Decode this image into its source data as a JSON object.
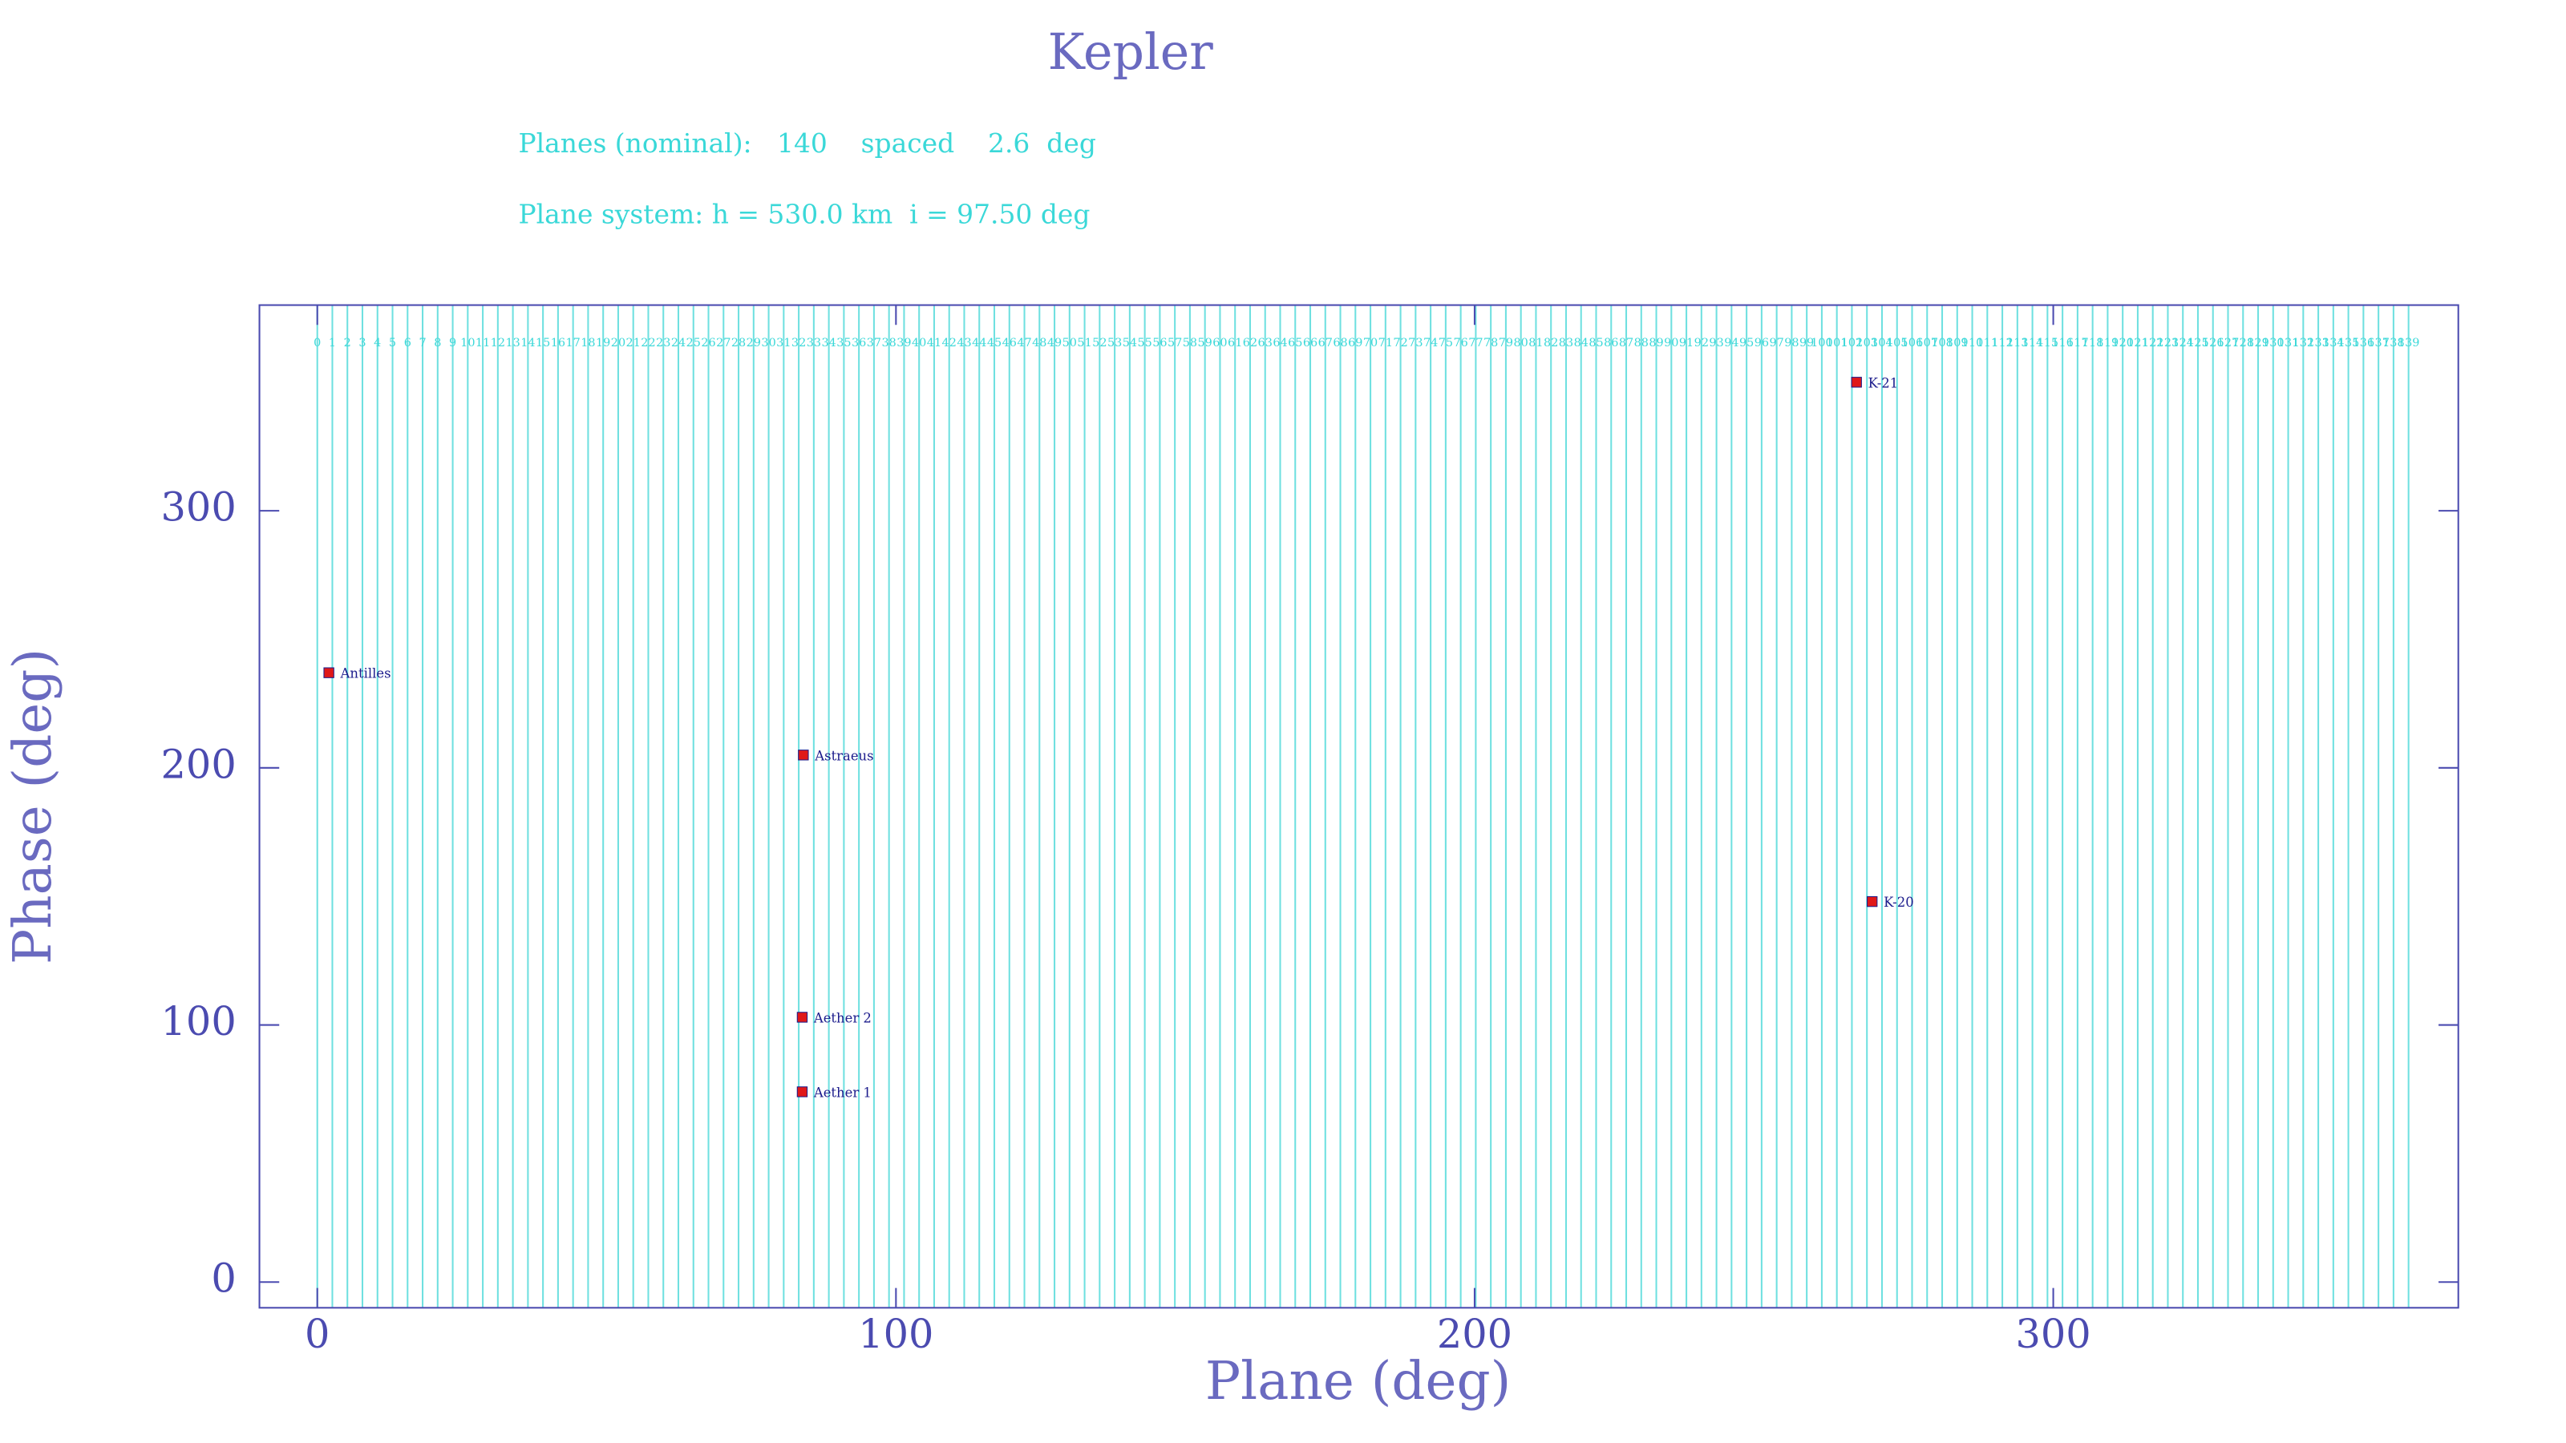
{
  "chart_data": {
    "type": "scatter",
    "title": "Kepler",
    "subtitle": "Planes (nominal):   140    spaced    2.6  deg",
    "subtitle2": "Plane system: h = 530.0 km  i = 97.50 deg",
    "x_label": "Plane (deg)",
    "y_label": "Phase (deg)",
    "xlim": [
      -10,
      370
    ],
    "ylim": [
      -10,
      380
    ],
    "xticks": [
      0,
      100,
      200,
      300
    ],
    "yticks": [
      0,
      100,
      200,
      300
    ],
    "axis_color": "#4b4bb0",
    "plane_color": "#6fe0e0",
    "point_color": "#e01818",
    "label_color": "#1c1c8c",
    "planes": {
      "x": [
        0,
        2.6,
        5.2,
        7.8,
        10.4,
        13,
        15.6,
        18.2,
        20.8,
        23.4,
        26,
        28.6,
        31.2,
        33.8,
        36.4,
        39,
        41.6,
        44.2,
        46.8,
        49.4,
        52,
        54.6,
        57.2,
        59.8,
        62.4,
        65,
        67.6,
        70.2,
        72.8,
        75.4,
        78,
        80.6,
        83.2,
        85.8,
        88.4,
        91,
        93.6,
        96.2,
        98.8,
        101.4,
        104,
        106.6,
        109.2,
        111.8,
        114.4,
        117,
        119.6,
        122.2,
        124.8,
        127.4,
        130,
        132.6,
        135.2,
        137.8,
        140.4,
        143,
        145.6,
        148.2,
        150.8,
        153.4,
        156,
        158.6,
        161.2,
        163.8,
        166.4,
        169,
        171.6,
        174.2,
        176.8,
        179.4,
        182,
        184.6,
        187.2,
        189.8,
        192.4,
        195,
        197.6,
        200.2,
        202.8,
        205.4,
        208,
        210.6,
        213.2,
        215.8,
        218.4,
        221,
        223.6,
        226.2,
        228.8,
        231.4,
        234,
        236.6,
        239.2,
        241.8,
        244.4,
        247,
        249.6,
        252.2,
        254.8,
        257.4,
        260,
        262.6,
        265.2,
        267.8,
        270.4,
        273,
        275.6,
        278.2,
        280.8,
        283.4,
        286,
        288.6,
        291.2,
        293.8,
        296.4,
        299,
        301.6,
        304.2,
        306.8,
        309.4,
        312,
        314.6,
        317.2,
        319.8,
        322.4,
        325,
        327.6,
        330.2,
        332.8,
        335.4,
        338,
        340.6,
        343.2,
        345.8,
        348.4,
        351,
        353.6,
        356.2,
        358.8,
        361.4
      ],
      "labels": [
        0,
        1,
        2,
        3,
        4,
        5,
        6,
        7,
        8,
        9,
        10,
        11,
        12,
        13,
        14,
        15,
        16,
        17,
        18,
        19,
        20,
        21,
        22,
        23,
        24,
        25,
        26,
        27,
        28,
        29,
        30,
        31,
        32,
        33,
        34,
        35,
        36,
        37,
        38,
        39,
        40,
        41,
        42,
        43,
        44,
        45,
        46,
        47,
        48,
        49,
        50,
        51,
        52,
        53,
        54,
        55,
        56,
        57,
        58,
        59,
        60,
        61,
        62,
        63,
        64,
        65,
        66,
        67,
        68,
        69,
        70,
        71,
        72,
        73,
        74,
        75,
        76,
        77,
        78,
        79,
        80,
        81,
        82,
        83,
        84,
        85,
        86,
        87,
        88,
        89,
        90,
        91,
        92,
        93,
        94,
        95,
        96,
        97,
        98,
        99,
        100,
        101,
        102,
        103,
        104,
        105,
        106,
        107,
        108,
        109,
        110,
        111,
        112,
        113,
        114,
        115,
        116,
        117,
        118,
        119,
        120,
        121,
        122,
        123,
        124,
        125,
        126,
        127,
        128,
        129,
        130,
        131,
        132,
        133,
        134,
        135,
        136,
        137,
        138,
        139
      ]
    },
    "points": {
      "names": [
        "Antilles",
        "Astraeus",
        "Aether 2",
        "Aether 1",
        "K-21",
        "K-20"
      ],
      "x": [
        2,
        84,
        83.8,
        83.8,
        266,
        268.7
      ],
      "values": [
        237,
        205,
        103,
        74,
        350,
        148
      ]
    }
  }
}
